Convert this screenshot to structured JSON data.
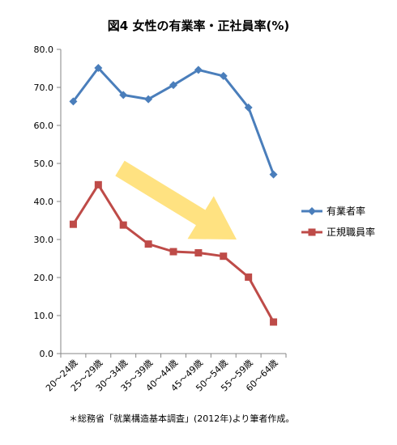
{
  "chart_data": {
    "type": "line",
    "title": "図4 女性の有業率・正社員率(%)",
    "xlabel": "",
    "ylabel": "",
    "categories": [
      "20～24歳",
      "25～29歳",
      "30～34歳",
      "35～39歳",
      "40～44歳",
      "45～49歳",
      "50～54歳",
      "55～59歳",
      "60～64歳"
    ],
    "ylim": [
      0,
      80
    ],
    "yticks": [
      "0.0",
      "10.0",
      "20.0",
      "30.0",
      "40.0",
      "50.0",
      "60.0",
      "70.0",
      "80.0"
    ],
    "grid": false,
    "legend_position": "right",
    "series": [
      {
        "name": "有業者率",
        "color": "#4a7ebb",
        "marker": "diamond",
        "values": [
          66.3,
          75.1,
          68.0,
          66.9,
          70.6,
          74.6,
          73.0,
          64.7,
          47.1
        ]
      },
      {
        "name": "正規職員率",
        "color": "#be4b48",
        "marker": "square",
        "values": [
          34.0,
          44.4,
          33.8,
          28.8,
          26.8,
          26.5,
          25.6,
          20.1,
          8.3
        ]
      }
    ],
    "arrow_color": "#ffe07a",
    "footnote": "＊総務省「就業構造基本調査」(2012年)より筆者作成。"
  }
}
